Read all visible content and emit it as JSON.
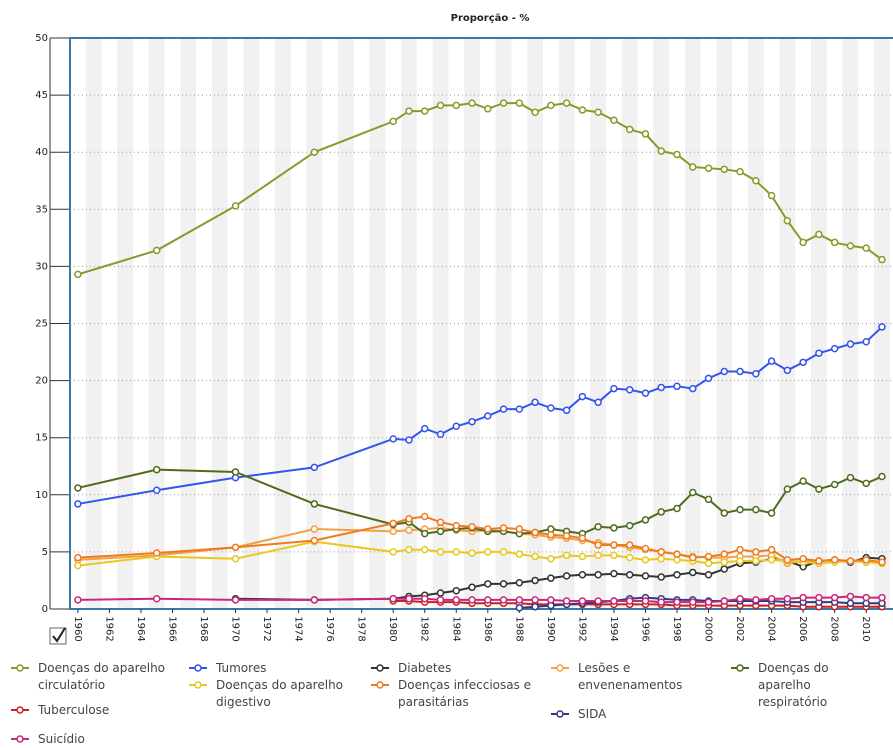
{
  "chart_data": {
    "type": "line",
    "title": "Proporção - %",
    "x": [
      1960,
      1965,
      1970,
      1975,
      1980,
      1981,
      1982,
      1983,
      1984,
      1985,
      1986,
      1987,
      1988,
      1989,
      1990,
      1991,
      1992,
      1993,
      1994,
      1995,
      1996,
      1997,
      1998,
      1999,
      2000,
      2001,
      2002,
      2003,
      2004,
      2005,
      2006,
      2007,
      2008,
      2009,
      2010,
      2011
    ],
    "xlim": [
      1959.5,
      2011.7
    ],
    "xticks": [
      1960,
      1962,
      1964,
      1966,
      1968,
      1970,
      1972,
      1974,
      1976,
      1978,
      1980,
      1982,
      1984,
      1986,
      1988,
      1990,
      1992,
      1994,
      1996,
      1998,
      2000,
      2002,
      2004,
      2006,
      2008,
      2010
    ],
    "ylim": [
      0,
      50
    ],
    "yticks": [
      0,
      5,
      10,
      15,
      20,
      25,
      30,
      35,
      40,
      45,
      50
    ],
    "grid": true,
    "series": [
      {
        "name": "Doenças do aparelho circulatório",
        "color": "#8a9a2a",
        "values": [
          29.3,
          31.4,
          35.3,
          40,
          42.7,
          43.6,
          43.6,
          44.1,
          44.1,
          44.3,
          43.8,
          44.3,
          44.3,
          43.5,
          44.1,
          44.3,
          43.7,
          43.5,
          42.8,
          42.0,
          41.6,
          40.1,
          39.8,
          38.7,
          38.6,
          38.5,
          38.3,
          37.5,
          36.2,
          34.0,
          32.1,
          32.8,
          32.1,
          31.8,
          31.6,
          30.6
        ]
      },
      {
        "name": "Tumores",
        "color": "#3355ee",
        "values": [
          9.2,
          10.4,
          11.5,
          12.4,
          14.9,
          14.8,
          15.8,
          15.3,
          16.0,
          16.4,
          16.9,
          17.5,
          17.5,
          18.1,
          17.6,
          17.4,
          18.6,
          18.1,
          19.3,
          19.2,
          18.9,
          19.4,
          19.5,
          19.3,
          20.2,
          20.8,
          20.8,
          20.6,
          21.7,
          20.9,
          21.6,
          22.4,
          22.8,
          23.2,
          23.4,
          24.7
        ]
      },
      {
        "name": "Diabetes",
        "color": "#333333",
        "values": [
          null,
          null,
          0.9,
          0.8,
          0.9,
          1.1,
          1.2,
          1.4,
          1.6,
          1.9,
          2.2,
          2.2,
          2.3,
          2.5,
          2.7,
          2.9,
          3.0,
          3.0,
          3.1,
          3.0,
          2.9,
          2.8,
          3.0,
          3.2,
          3.0,
          3.5,
          4.0,
          4.1,
          4.4,
          4.2,
          3.7,
          4.2,
          4.3,
          4.1,
          4.5,
          4.4
        ]
      },
      {
        "name": "Lesões e envenenamentos",
        "color": "#f5a040",
        "values": [
          4.3,
          4.7,
          5.4,
          7.0,
          6.8,
          6.9,
          7.0,
          7.1,
          6.9,
          6.8,
          6.9,
          6.8,
          6.6,
          6.5,
          6.3,
          6.2,
          6.0,
          5.8,
          5.6,
          5.4,
          5.2,
          5.0,
          4.8,
          4.6,
          4.5,
          4.5,
          4.6,
          4.6,
          4.7,
          4.0,
          4.2,
          4.2,
          4.3,
          4.2,
          4.1,
          4.0
        ]
      },
      {
        "name": "Doenças do aparelho respiratório",
        "color": "#4e6b1e",
        "values": [
          10.6,
          12.2,
          12.0,
          9.2,
          7.4,
          7.6,
          6.6,
          6.8,
          7.0,
          7.1,
          6.8,
          6.8,
          6.6,
          6.7,
          7.0,
          6.8,
          6.6,
          7.2,
          7.1,
          7.3,
          7.8,
          8.5,
          8.8,
          10.2,
          9.6,
          8.4,
          8.7,
          8.7,
          8.4,
          10.5,
          11.2,
          10.5,
          10.9,
          11.5,
          11.0,
          11.6
        ]
      },
      {
        "name": "Tuberculose",
        "color": "#cc2020",
        "values": [
          null,
          null,
          null,
          null,
          0.7,
          0.7,
          0.6,
          0.6,
          0.6,
          0.5,
          0.5,
          0.5,
          0.5,
          0.4,
          0.4,
          0.4,
          0.4,
          0.4,
          0.4,
          0.4,
          0.4,
          0.4,
          0.3,
          0.3,
          0.3,
          0.3,
          0.3,
          0.3,
          0.3,
          0.3,
          0.2,
          0.2,
          0.2,
          0.2,
          0.2,
          0.2
        ]
      },
      {
        "name": "Doenças do aparelho digestivo",
        "color": "#e8c820",
        "values": [
          3.8,
          4.6,
          4.4,
          5.9,
          5.0,
          5.2,
          5.2,
          5.0,
          5.0,
          4.9,
          5.0,
          5.0,
          4.8,
          4.6,
          4.4,
          4.7,
          4.6,
          4.7,
          4.7,
          4.5,
          4.3,
          4.4,
          4.3,
          4.2,
          4.0,
          4.1,
          4.2,
          4.2,
          4.3,
          4.2,
          4.1,
          4.0,
          4.1,
          4.2,
          4.1,
          4.0
        ]
      },
      {
        "name": "Doenças infecciosas e parasitárias",
        "color": "#f07a20",
        "values": [
          4.5,
          4.9,
          5.4,
          6.0,
          7.5,
          7.9,
          8.1,
          7.6,
          7.3,
          7.2,
          7.0,
          7.1,
          7.0,
          6.7,
          6.5,
          6.4,
          6.2,
          5.6,
          5.6,
          5.6,
          5.3,
          5.0,
          4.8,
          4.5,
          4.6,
          4.8,
          5.2,
          5.0,
          5.2,
          4.3,
          4.4,
          4.2,
          4.3,
          4.2,
          4.3,
          4.1
        ]
      },
      {
        "name": "SIDA",
        "color": "#303a80",
        "values": [
          null,
          null,
          null,
          null,
          null,
          null,
          null,
          null,
          null,
          null,
          null,
          null,
          0.1,
          0.2,
          0.3,
          0.4,
          0.5,
          0.6,
          0.7,
          0.9,
          1.0,
          0.9,
          0.8,
          0.8,
          0.7,
          0.7,
          0.7,
          0.7,
          0.7,
          0.6,
          0.6,
          0.6,
          0.6,
          0.5,
          0.5,
          0.5
        ]
      },
      {
        "name": "Suicídio",
        "color": "#c8287a",
        "values": [
          0.8,
          0.9,
          0.8,
          0.8,
          0.9,
          0.9,
          0.9,
          0.8,
          0.8,
          0.8,
          0.8,
          0.8,
          0.8,
          0.8,
          0.8,
          0.7,
          0.7,
          0.7,
          0.7,
          0.7,
          0.7,
          0.6,
          0.6,
          0.6,
          0.6,
          0.7,
          0.9,
          0.8,
          0.9,
          0.9,
          1.0,
          1.0,
          1.0,
          1.1,
          1.0,
          1.0
        ]
      }
    ]
  }
}
